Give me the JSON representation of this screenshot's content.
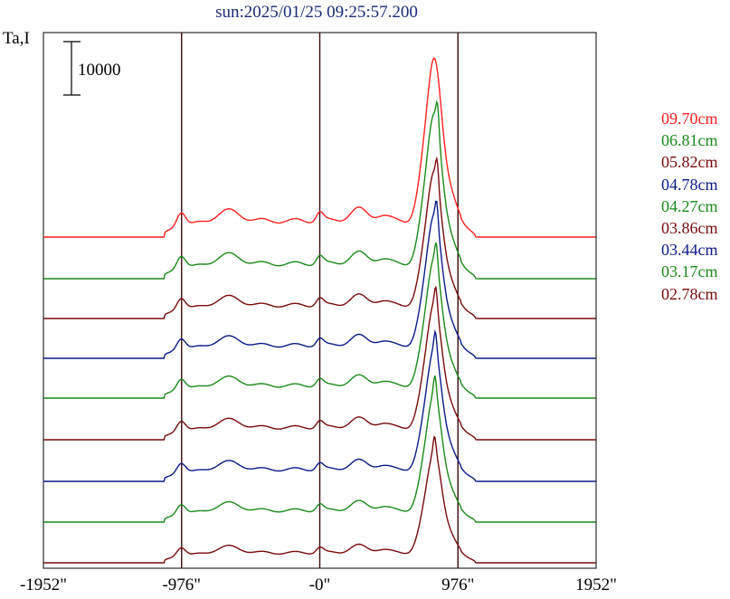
{
  "header": {
    "title": "sun:2025/01/25 09:25:57.200"
  },
  "chart_data": {
    "type": "line",
    "title": "sun:2025/01/25 09:25:57.200",
    "ylabel": "Ta,I",
    "scale_bar_label": "10000",
    "x_ticks": [
      "-1952\"",
      "-976\"",
      "-0\"",
      "976\"",
      "1952\""
    ],
    "x_tick_values": [
      -1952,
      -976,
      0,
      976,
      1952
    ],
    "xlim": [
      -1952,
      1952
    ],
    "vertical_lines": [
      -976,
      0,
      976
    ],
    "series": [
      {
        "name": "09.70cm",
        "color": "#ff2020",
        "baseline": 262,
        "scale": 1.0
      },
      {
        "name": "06.81cm",
        "color": "#1a8a1a",
        "baseline": 308,
        "scale": 0.92
      },
      {
        "name": "05.82cm",
        "color": "#7a0a0a",
        "baseline": 352,
        "scale": 0.82
      },
      {
        "name": "04.78cm",
        "color": "#0a1a8a",
        "baseline": 396,
        "scale": 0.8
      },
      {
        "name": "04.27cm",
        "color": "#1a8a1a",
        "baseline": 440,
        "scale": 0.78
      },
      {
        "name": "03.86cm",
        "color": "#7a0a0a",
        "baseline": 486,
        "scale": 0.76
      },
      {
        "name": "03.44cm",
        "color": "#0a1a8a",
        "baseline": 532,
        "scale": 0.74
      },
      {
        "name": "03.17cm",
        "color": "#1a8a1a",
        "baseline": 577,
        "scale": 0.72
      },
      {
        "name": "02.78cm",
        "color": "#7a0a0a",
        "baseline": 622,
        "scale": 0.62
      }
    ]
  }
}
